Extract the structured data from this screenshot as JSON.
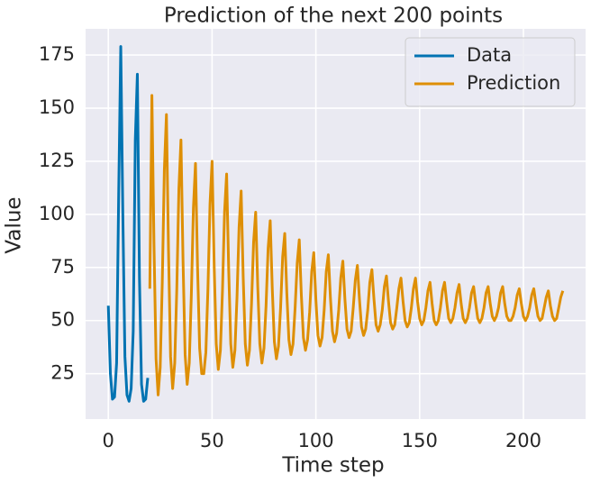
{
  "chart_data": {
    "type": "line",
    "title": "Prediction of the next 200 points",
    "xlabel": "Time step",
    "ylabel": "Value",
    "xlim": [
      -10.95,
      229.95
    ],
    "ylim": [
      3.65,
      187.35
    ],
    "xticks": [
      0,
      50,
      100,
      150,
      200
    ],
    "yticks": [
      25,
      50,
      75,
      100,
      125,
      150,
      175
    ],
    "grid": true,
    "legend": "upper right",
    "series": [
      {
        "name": "Data",
        "color": "#0173b2",
        "x": [
          0,
          1,
          2,
          3,
          4,
          5,
          6,
          7,
          8,
          9,
          10,
          11,
          12,
          13,
          14,
          15,
          16,
          17,
          18,
          19
        ],
        "values": [
          57,
          25,
          13,
          14,
          30,
          110,
          179,
          100,
          33,
          15,
          12,
          18,
          45,
          135,
          166,
          70,
          20,
          12,
          13,
          23
        ]
      },
      {
        "name": "Prediction",
        "color": "#de8f05",
        "x": [
          20,
          21,
          22,
          23,
          24,
          25,
          26,
          27,
          28,
          29,
          30,
          31,
          32,
          33,
          34,
          35,
          36,
          37,
          38,
          39,
          40,
          41,
          42,
          43,
          44,
          45,
          46,
          47,
          48,
          49,
          50,
          51,
          52,
          53,
          54,
          55,
          56,
          57,
          58,
          59,
          60,
          61,
          62,
          63,
          64,
          65,
          66,
          67,
          68,
          69,
          70,
          71,
          72,
          73,
          74,
          75,
          76,
          77,
          78,
          79,
          80,
          81,
          82,
          83,
          84,
          85,
          86,
          87,
          88,
          89,
          90,
          91,
          92,
          93,
          94,
          95,
          96,
          97,
          98,
          99,
          100,
          101,
          102,
          103,
          104,
          105,
          106,
          107,
          108,
          109,
          110,
          111,
          112,
          113,
          114,
          115,
          116,
          117,
          118,
          119,
          120,
          121,
          122,
          123,
          124,
          125,
          126,
          127,
          128,
          129,
          130,
          131,
          132,
          133,
          134,
          135,
          136,
          137,
          138,
          139,
          140,
          141,
          142,
          143,
          144,
          145,
          146,
          147,
          148,
          149,
          150,
          151,
          152,
          153,
          154,
          155,
          156,
          157,
          158,
          159,
          160,
          161,
          162,
          163,
          164,
          165,
          166,
          167,
          168,
          169,
          170,
          171,
          172,
          173,
          174,
          175,
          176,
          177,
          178,
          179,
          180,
          181,
          182,
          183,
          184,
          185,
          186,
          187,
          188,
          189,
          190,
          191,
          192,
          193,
          194,
          195,
          196,
          197,
          198,
          199,
          200,
          201,
          202,
          203,
          204,
          205,
          206,
          207,
          208,
          209,
          210,
          211,
          212,
          213,
          214,
          215,
          216,
          217,
          218,
          219
        ],
        "values": [
          65,
          156,
          86,
          32,
          15,
          28,
          68,
          121,
          147,
          83,
          33,
          18,
          30,
          65,
          112,
          135,
          78,
          34,
          20,
          30,
          62,
          103,
          124,
          75,
          37,
          25,
          25,
          35,
          65,
          105,
          125,
          76,
          39,
          27,
          36,
          64,
          101,
          119,
          74,
          39,
          28,
          36,
          61,
          94,
          111,
          70,
          39,
          29,
          36,
          58,
          87,
          101,
          66,
          39,
          30,
          37,
          57,
          84,
          97,
          65,
          40,
          32,
          38,
          56,
          80,
          91,
          63,
          41,
          34,
          39,
          56,
          77,
          88,
          62,
          42,
          36,
          41,
          54,
          73,
          82,
          60,
          43,
          38,
          42,
          55,
          73,
          81,
          61,
          45,
          40,
          44,
          55,
          70,
          78,
          60,
          46,
          42,
          45,
          56,
          69,
          76,
          60,
          47,
          43,
          46,
          55,
          68,
          74,
          60,
          48,
          45,
          48,
          55,
          66,
          71,
          59,
          49,
          46,
          48,
          56,
          65,
          70,
          59,
          50,
          47,
          49,
          56,
          65,
          70,
          59,
          51,
          48,
          50,
          56,
          64,
          68,
          58,
          50,
          48,
          50,
          56,
          64,
          68,
          59,
          51,
          49,
          51,
          56,
          63,
          67,
          58,
          51,
          49,
          51,
          56,
          63,
          66,
          58,
          51,
          49,
          51,
          56,
          63,
          66,
          58,
          52,
          50,
          52,
          56,
          63,
          66,
          58,
          52,
          50,
          50,
          52,
          56,
          62,
          65,
          58,
          52,
          50,
          52,
          56,
          62,
          65,
          58,
          52,
          50,
          51,
          56,
          61,
          64,
          57,
          52,
          50,
          51,
          56,
          61,
          64
        ]
      }
    ]
  }
}
